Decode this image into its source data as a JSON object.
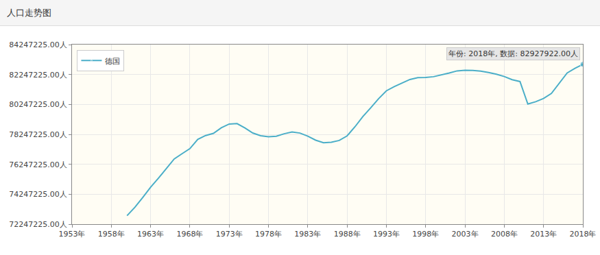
{
  "chart_data": {
    "type": "line",
    "title": "人口走势图",
    "x": [
      1960,
      1961,
      1962,
      1963,
      1964,
      1965,
      1966,
      1967,
      1968,
      1969,
      1970,
      1971,
      1972,
      1973,
      1974,
      1975,
      1976,
      1977,
      1978,
      1979,
      1980,
      1981,
      1982,
      1983,
      1984,
      1985,
      1986,
      1987,
      1988,
      1989,
      1990,
      1991,
      1992,
      1993,
      1994,
      1995,
      1996,
      1997,
      1998,
      1999,
      2000,
      2001,
      2002,
      2003,
      2004,
      2005,
      2006,
      2007,
      2008,
      2009,
      2010,
      2011,
      2012,
      2013,
      2014,
      2015,
      2016,
      2017,
      2018
    ],
    "series": [
      {
        "name": "德国",
        "color": "#4aaec8",
        "values": [
          72814900,
          73377632,
          74025784,
          74714353,
          75318337,
          75963695,
          76600311,
          76951336,
          77294314,
          77909682,
          78169289,
          78312842,
          78688452,
          78936666,
          78967433,
          78673554,
          78336950,
          78159814,
          78091820,
          78126350,
          78288576,
          78407907,
          78333366,
          78128282,
          77858685,
          77684873,
          77720436,
          77839920,
          78144619,
          78751283,
          79433029,
          80013896,
          80624598,
          81156363,
          81438348,
          81678051,
          81914831,
          82034771,
          82047195,
          82100243,
          82211508,
          82349925,
          82488495,
          82534176,
          82516260,
          82469422,
          82376451,
          82266372,
          82110097,
          81902307,
          81776930,
          80274983,
          80425823,
          80645605,
          80982500,
          81686611,
          82348669,
          82657002,
          82927922
        ]
      }
    ],
    "xlim": [
      1953,
      2018
    ],
    "xticks": [
      {
        "value": 1953,
        "label": "1953年"
      },
      {
        "value": 1958,
        "label": "1958年"
      },
      {
        "value": 1963,
        "label": "1963年"
      },
      {
        "value": 1968,
        "label": "1968年"
      },
      {
        "value": 1973,
        "label": "1973年"
      },
      {
        "value": 1978,
        "label": "1978年"
      },
      {
        "value": 1983,
        "label": "1983年"
      },
      {
        "value": 1988,
        "label": "1988年"
      },
      {
        "value": 1993,
        "label": "1993年"
      },
      {
        "value": 1998,
        "label": "1998年"
      },
      {
        "value": 2003,
        "label": "2003年"
      },
      {
        "value": 2008,
        "label": "2008年"
      },
      {
        "value": 2013,
        "label": "2013年"
      },
      {
        "value": 2018,
        "label": "2018年"
      }
    ],
    "ylim": [
      72247225,
      84247225
    ],
    "yticks": [
      {
        "value": 72247225,
        "label": "72247225.00人"
      },
      {
        "value": 74247225,
        "label": "74247225.00人"
      },
      {
        "value": 76247225,
        "label": "76247225.00人"
      },
      {
        "value": 78247225,
        "label": "78247225.00人"
      },
      {
        "value": 80247225,
        "label": "80247225.00人"
      },
      {
        "value": 82247225,
        "label": "82247225.00人"
      },
      {
        "value": 84247225,
        "label": "84247225.00人"
      }
    ],
    "annotations": [
      {
        "text": "年份: 2018年, 数据: 82927922.00人"
      }
    ],
    "grid": true,
    "legend": "top-left"
  }
}
